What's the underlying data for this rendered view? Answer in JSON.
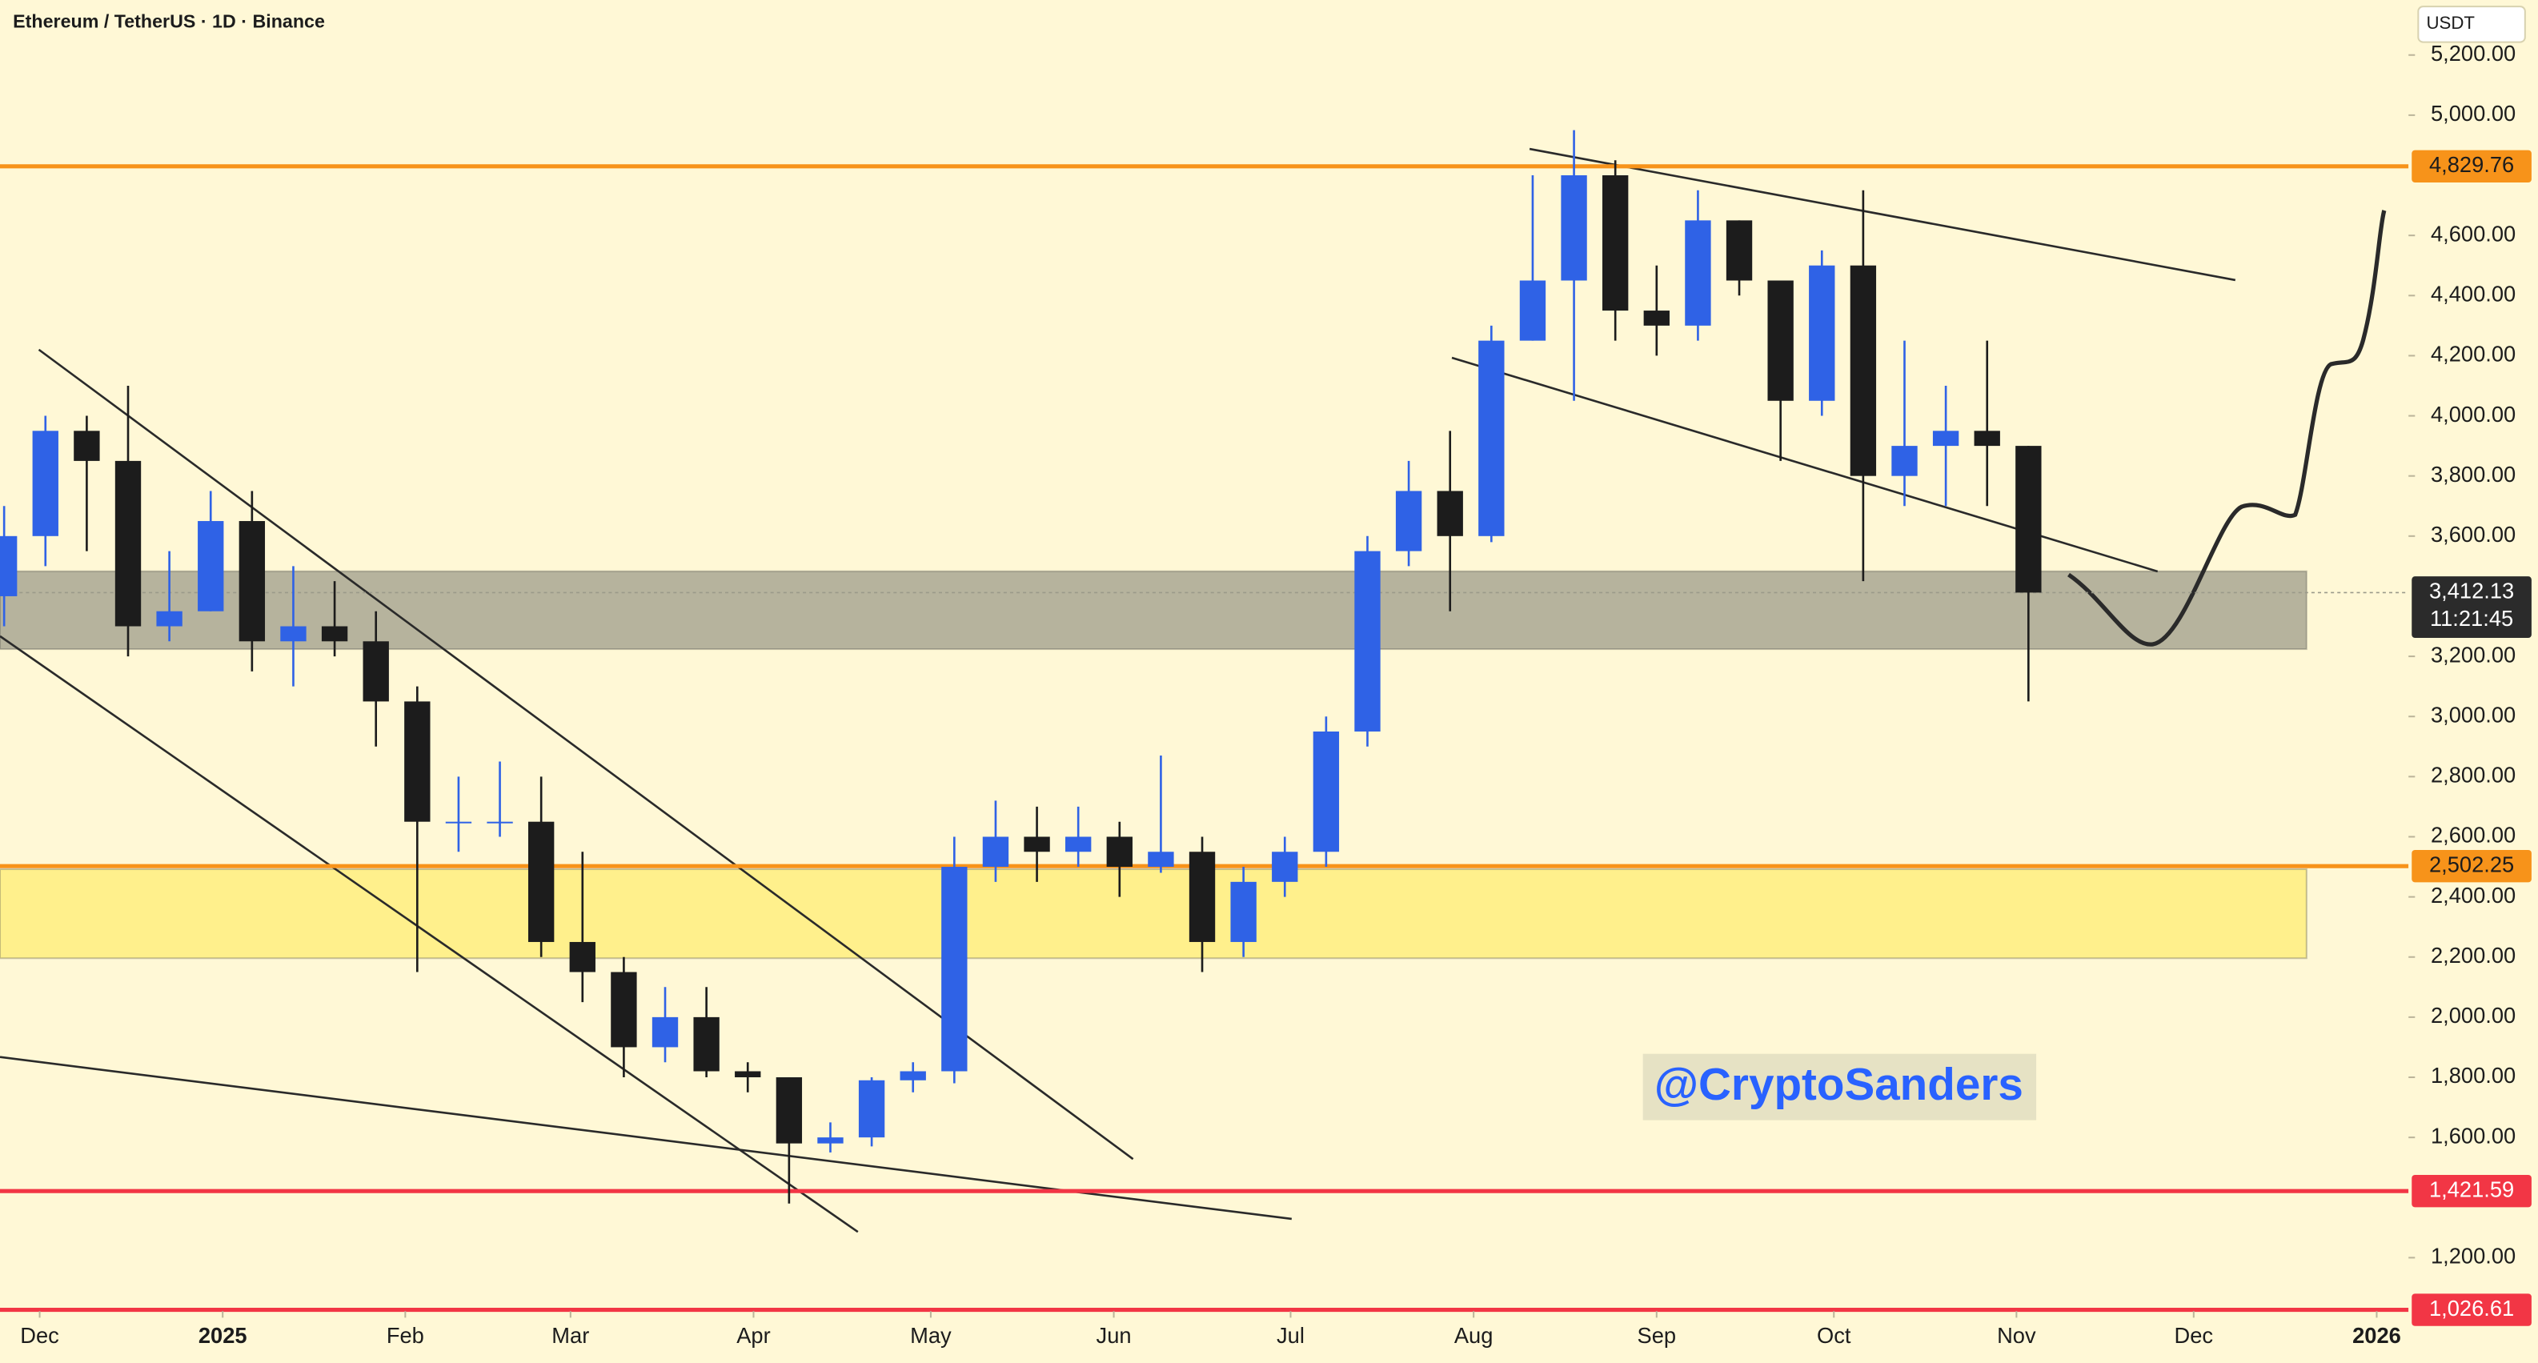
{
  "chart_data": {
    "type": "candlestick",
    "title": "Ethereum / TetherUS · 1D · Binance",
    "currency": "USDT",
    "watermark": "@CryptoSanders",
    "up_color": "#2f62e6",
    "down_color": "#1c1c1c",
    "xlim": [
      -0.1,
      58.2
    ],
    "ylim": [
      1022,
      5383
    ],
    "xticks": [
      {
        "value": 0.86,
        "label": "Dec"
      },
      {
        "value": 5.29,
        "label": "2025"
      },
      {
        "value": 9.71,
        "label": "Feb"
      },
      {
        "value": 13.71,
        "label": "Mar"
      },
      {
        "value": 18.14,
        "label": "Apr"
      },
      {
        "value": 22.43,
        "label": "May"
      },
      {
        "value": 26.86,
        "label": "Jun"
      },
      {
        "value": 31.14,
        "label": "Jul"
      },
      {
        "value": 35.57,
        "label": "Aug"
      },
      {
        "value": 40,
        "label": "Sep"
      },
      {
        "value": 44.29,
        "label": "Oct"
      },
      {
        "value": 48.71,
        "label": "Nov"
      },
      {
        "value": 53,
        "label": "Dec"
      },
      {
        "value": 57.43,
        "label": "2026"
      }
    ],
    "yticks": [
      {
        "value": 1200,
        "label": "1,200.00"
      },
      {
        "value": 1600,
        "label": "1,600.00"
      },
      {
        "value": 1800,
        "label": "1,800.00"
      },
      {
        "value": 2000,
        "label": "2,000.00"
      },
      {
        "value": 2200,
        "label": "2,200.00"
      },
      {
        "value": 2400,
        "label": "2,400.00"
      },
      {
        "value": 2600,
        "label": "2,600.00"
      },
      {
        "value": 2800,
        "label": "2,800.00"
      },
      {
        "value": 3000,
        "label": "3,000.00"
      },
      {
        "value": 3200,
        "label": "3,200.00"
      },
      {
        "value": 3600,
        "label": "3,600.00"
      },
      {
        "value": 3800,
        "label": "3,800.00"
      },
      {
        "value": 4000,
        "label": "4,000.00"
      },
      {
        "value": 4200,
        "label": "4,200.00"
      },
      {
        "value": 4400,
        "label": "4,400.00"
      },
      {
        "value": 4600,
        "label": "4,600.00"
      },
      {
        "value": 5000,
        "label": "5,000.00"
      },
      {
        "value": 5200,
        "label": "5,200.00"
      }
    ],
    "open": [
      3400,
      3600,
      3950,
      3850,
      3300,
      3350,
      3650,
      3250,
      3300,
      3250,
      3050,
      2650,
      2650,
      2650,
      2250,
      2150,
      1900,
      2000,
      1820,
      1800,
      1580,
      1600,
      1790,
      1820,
      2500,
      2600,
      2550,
      2600,
      2500,
      2550,
      2250,
      2450,
      2550,
      2950,
      3550,
      3750,
      3600,
      4250,
      4450,
      4800,
      4350,
      4300,
      4650,
      4450,
      4050,
      4500,
      3800,
      3900,
      3950,
      3900
    ],
    "high": [
      3700,
      4000,
      4000,
      4100,
      3550,
      3750,
      3750,
      3500,
      3450,
      3350,
      3100,
      2800,
      2850,
      2800,
      2550,
      2200,
      2100,
      2100,
      1850,
      1800,
      1650,
      1800,
      1850,
      2600,
      2720,
      2700,
      2700,
      2650,
      2870,
      2600,
      2500,
      2600,
      3000,
      3600,
      3850,
      3950,
      4300,
      4800,
      4950,
      4850,
      4500,
      4750,
      4650,
      4450,
      4550,
      4750,
      4250,
      4100,
      4250,
      3900
    ],
    "low": [
      3300,
      3500,
      3550,
      3200,
      3250,
      3350,
      3150,
      3100,
      3200,
      2900,
      2150,
      2550,
      2600,
      2200,
      2050,
      1800,
      1850,
      1800,
      1750,
      1380,
      1550,
      1570,
      1750,
      1780,
      2450,
      2450,
      2500,
      2400,
      2480,
      2150,
      2200,
      2400,
      2500,
      2900,
      3500,
      3350,
      3580,
      4250,
      4050,
      4250,
      4200,
      4250,
      4400,
      3850,
      4000,
      3450,
      3700,
      3700,
      3700,
      3050
    ],
    "close": [
      3600,
      3950,
      3850,
      3300,
      3350,
      3650,
      3250,
      3300,
      3250,
      3050,
      2650,
      2650,
      2650,
      2250,
      2150,
      1900,
      2000,
      1820,
      1800,
      1580,
      1600,
      1790,
      1820,
      2500,
      2600,
      2550,
      2600,
      2500,
      2550,
      2250,
      2450,
      2550,
      2950,
      3550,
      3750,
      3600,
      4250,
      4450,
      4800,
      4350,
      4300,
      4650,
      4450,
      4050,
      4500,
      3800,
      3900,
      3950,
      3900,
      3412.13
    ],
    "zones": [
      {
        "from": 3224,
        "to": 3483,
        "color": "rgba(110,110,100,0.5)"
      },
      {
        "from": 2196,
        "to": 2492,
        "color": "#fff08c"
      }
    ],
    "levels": [
      {
        "value": 4829.76,
        "label": "4,829.76",
        "color": "#f7931a",
        "text_color": "#1c1c1c"
      },
      {
        "value": 2502.25,
        "label": "2,502.25",
        "color": "#f7931a",
        "text_color": "#1c1c1c"
      },
      {
        "value": 1421.59,
        "label": "1,421.59",
        "color": "#f23645",
        "text_color": "#ffffff"
      },
      {
        "value": 1026.61,
        "label": "1,026.61",
        "color": "#f23645",
        "text_color": "#ffffff"
      }
    ],
    "last_price": {
      "value": 3412.13,
      "label": "3,412.13"
    },
    "countdown": "11:21:45"
  }
}
